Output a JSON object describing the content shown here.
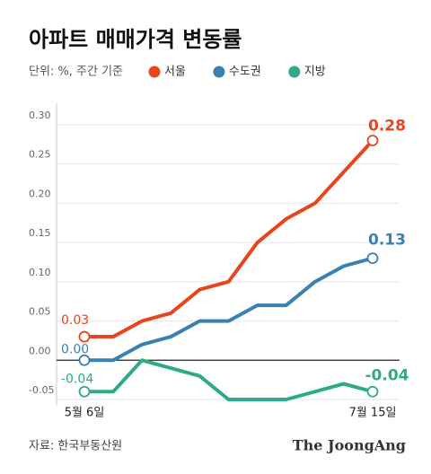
{
  "chart_data": {
    "type": "line",
    "title": "아파트 매매가격 변동률",
    "subtitle": "단위: %, 주간 기준",
    "source": "자료: 한국부동산원",
    "brand": "The JoongAng",
    "categories": [
      "5월 6일",
      null,
      null,
      null,
      null,
      null,
      null,
      null,
      null,
      null,
      "7월 15일"
    ],
    "series": [
      {
        "name": "서울",
        "color": "#e8441e",
        "values": [
          0.03,
          0.03,
          0.05,
          0.06,
          0.09,
          0.1,
          0.15,
          0.18,
          0.2,
          0.24,
          0.28
        ],
        "value_labels": [
          "0.03",
          null,
          null,
          null,
          null,
          null,
          null,
          null,
          null,
          null,
          "0.28"
        ]
      },
      {
        "name": "수도권",
        "color": "#3a80b0",
        "values": [
          0.0,
          0.0,
          0.02,
          0.03,
          0.05,
          0.05,
          0.07,
          0.07,
          0.1,
          0.12,
          0.13
        ],
        "value_labels": [
          "0.00",
          null,
          null,
          null,
          null,
          null,
          null,
          null,
          null,
          null,
          "0.13"
        ]
      },
      {
        "name": "지방",
        "color": "#2ea98a",
        "values": [
          -0.04,
          -0.04,
          0.0,
          -0.01,
          -0.02,
          -0.05,
          -0.05,
          -0.05,
          -0.04,
          -0.03,
          -0.04
        ],
        "value_labels": [
          "-0.04",
          null,
          null,
          null,
          null,
          null,
          null,
          null,
          null,
          null,
          "-0.04"
        ]
      }
    ],
    "ylim": [
      -0.05,
      0.3
    ],
    "yticks": [
      -0.05,
      {
        "value": 0,
        "label": "0.00"
      },
      0.05,
      {
        "value": 0.1,
        "label": "0.10"
      },
      0.15,
      {
        "value": 0.2,
        "label": "0.20"
      },
      0.25,
      {
        "value": 0.3,
        "label": "0.30"
      }
    ],
    "grid": true
  }
}
